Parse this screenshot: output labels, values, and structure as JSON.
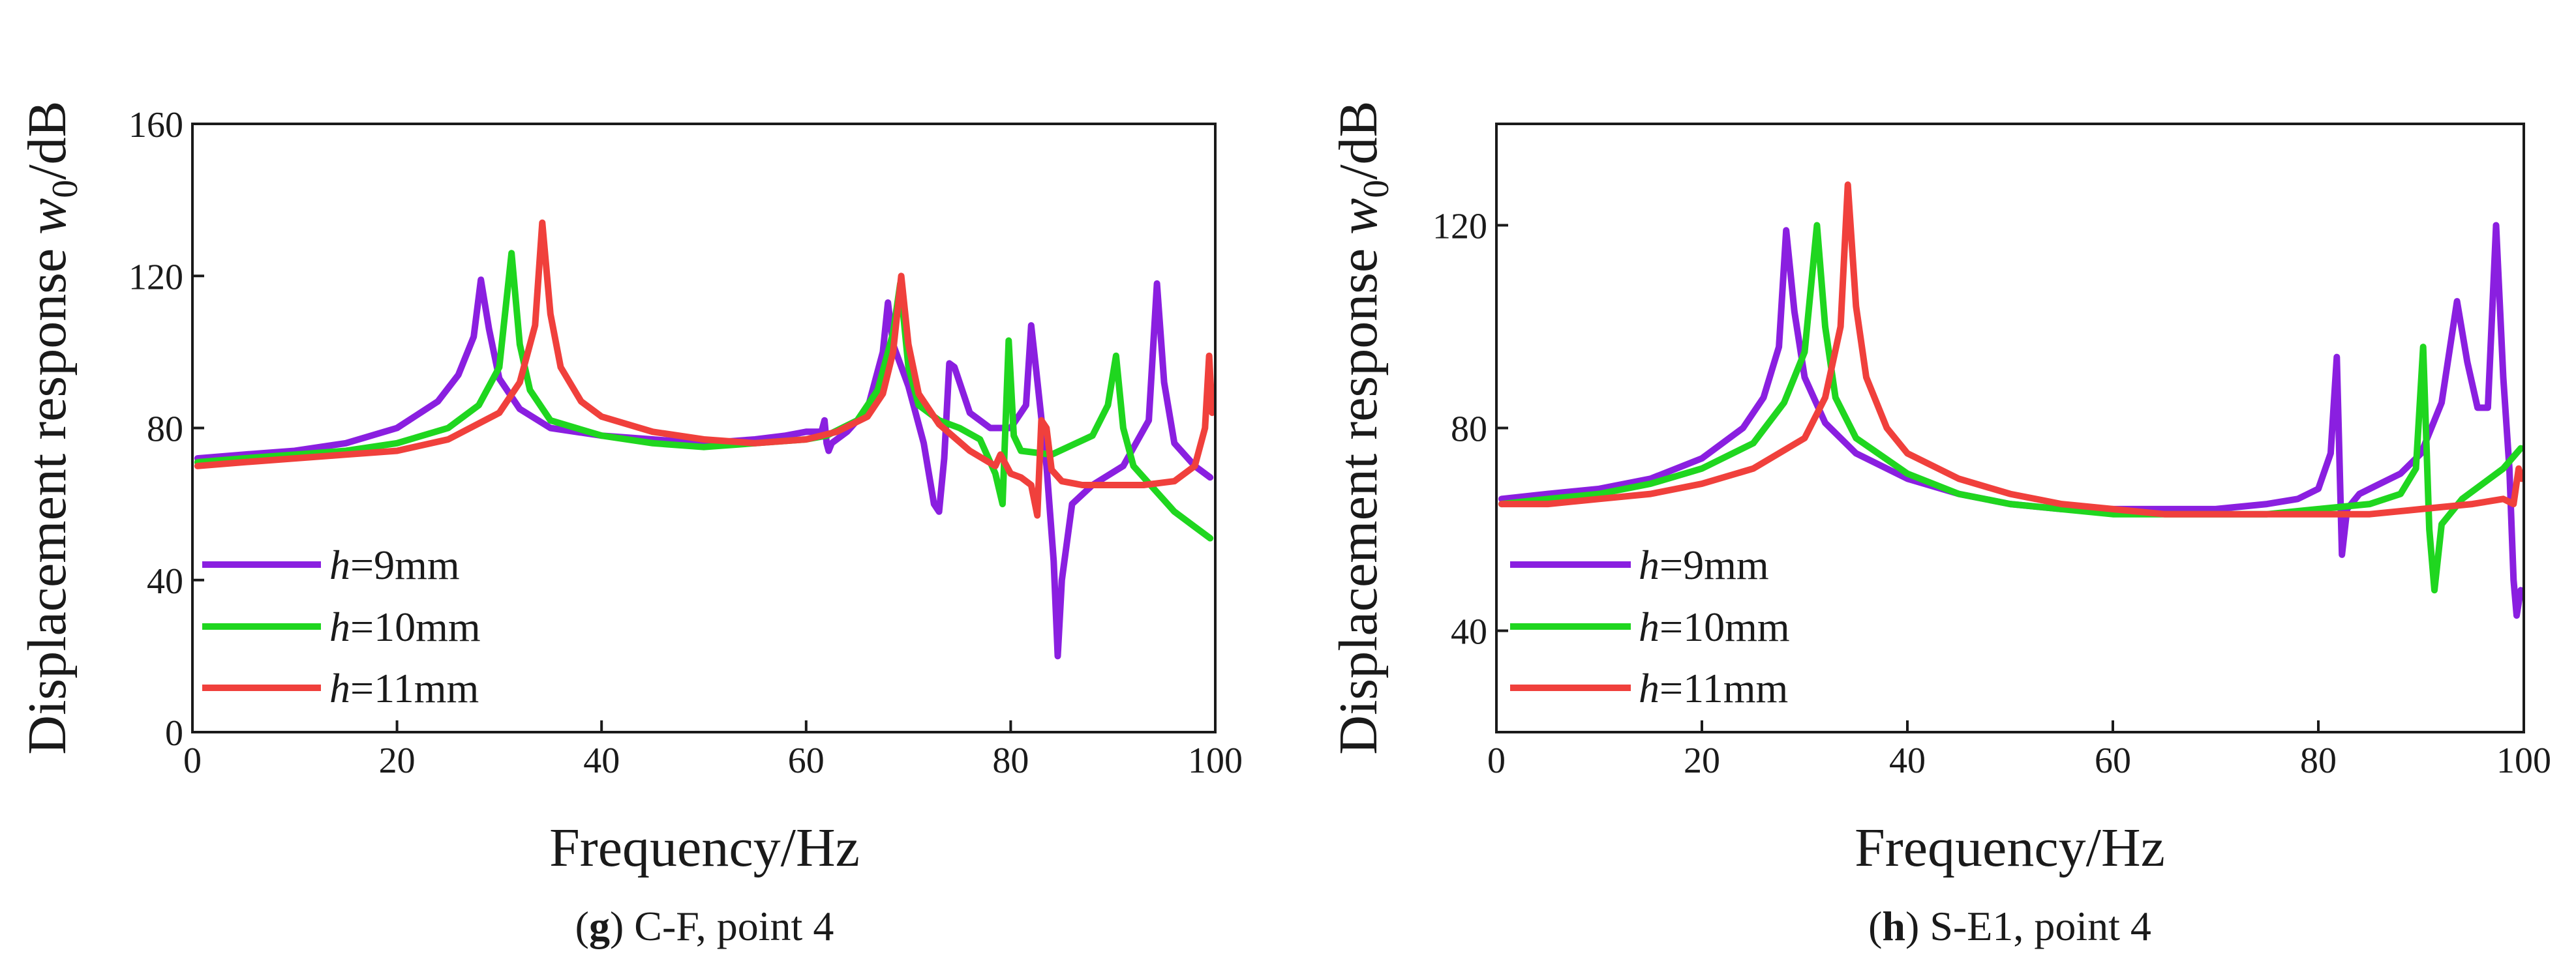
{
  "colors": {
    "h9": "#8a1fe0",
    "h10": "#1fd61f",
    "h11": "#f0403c",
    "axis": "#1a1a1a"
  },
  "chart_data": [
    {
      "type": "line",
      "caption_letter": "g",
      "caption_text": " C-F, point 4",
      "xlabel": "Frequency/Hz",
      "ylabel_prefix": "Displacement response ",
      "ylabel_var": "w",
      "ylabel_sub": "0",
      "ylabel_suffix": "/dB",
      "xlim": [
        0,
        100
      ],
      "ylim": [
        0,
        160
      ],
      "xticks": [
        0,
        20,
        40,
        60,
        80,
        100
      ],
      "yticks": [
        0,
        40,
        80,
        120,
        160
      ],
      "legend_position": "bottom-left",
      "series": [
        {
          "name_var": "h",
          "name_rest": "=9mm",
          "color": "#8a1fe0",
          "x": [
            0.5,
            5,
            10,
            15,
            20,
            24,
            26,
            27.5,
            28.2,
            29,
            30,
            32,
            35,
            40,
            45,
            50,
            55,
            58,
            60,
            61.5,
            61.8,
            62,
            62.2,
            62.5,
            64,
            66,
            67.5,
            68,
            68.5,
            70,
            71.5,
            72.5,
            73,
            73.5,
            74,
            74.5,
            76,
            78,
            80,
            81.5,
            82,
            82.5,
            83.5,
            84.2,
            84.6,
            85,
            86,
            88,
            91,
            93.5,
            94.3,
            95,
            96,
            98,
            99.5
          ],
          "y": [
            72,
            73,
            74,
            76,
            80,
            87,
            94,
            104,
            119,
            106,
            93,
            85,
            80,
            78,
            77,
            76,
            77,
            78,
            79,
            79,
            82,
            76,
            74,
            76,
            79,
            85,
            100,
            113,
            102,
            91,
            76,
            60,
            58,
            72,
            97,
            96,
            84,
            80,
            80,
            86,
            107,
            95,
            70,
            45,
            20,
            40,
            60,
            65,
            70,
            82,
            118,
            92,
            76,
            70,
            67
          ]
        },
        {
          "name_var": "h",
          "name_rest": "=10mm",
          "color": "#1fd61f",
          "x": [
            0.5,
            5,
            10,
            15,
            20,
            25,
            28,
            30,
            31.2,
            32,
            33,
            35,
            40,
            45,
            50,
            55,
            60,
            62,
            65,
            67,
            68.5,
            69.2,
            70,
            71,
            73,
            75,
            77,
            78.5,
            79.2,
            79.8,
            80.3,
            81,
            84,
            88,
            89.5,
            90.3,
            91,
            92,
            94,
            96,
            98,
            99.5
          ],
          "y": [
            71,
            72,
            73,
            74,
            76,
            80,
            86,
            96,
            126,
            102,
            90,
            82,
            78,
            76,
            75,
            76,
            77,
            78,
            82,
            90,
            105,
            118,
            96,
            86,
            82,
            80,
            77,
            68,
            60,
            103,
            78,
            74,
            73,
            78,
            86,
            99,
            80,
            70,
            64,
            58,
            54,
            51
          ]
        },
        {
          "name_var": "h",
          "name_rest": "=11mm",
          "color": "#f0403c",
          "x": [
            0.5,
            5,
            10,
            15,
            20,
            25,
            30,
            32,
            33.5,
            34.2,
            35,
            36,
            38,
            40,
            45,
            50,
            55,
            60,
            63,
            66,
            67.5,
            68.5,
            69.3,
            70,
            71,
            73,
            76,
            78.5,
            79,
            80,
            81,
            82,
            82.6,
            83,
            83.5,
            84,
            85,
            87,
            90,
            93,
            96,
            98,
            99,
            99.4,
            99.7
          ],
          "y": [
            70,
            71,
            72,
            73,
            74,
            77,
            84,
            92,
            107,
            134,
            110,
            96,
            87,
            83,
            79,
            77,
            76,
            77,
            79,
            83,
            89,
            100,
            120,
            102,
            89,
            81,
            74,
            70,
            73,
            68,
            67,
            65,
            57,
            82,
            80,
            69,
            66,
            65,
            65,
            65,
            66,
            70,
            80,
            99,
            84
          ]
        }
      ]
    },
    {
      "type": "line",
      "caption_letter": "h",
      "caption_text": " S-E1, point 4",
      "xlabel": "Frequency/Hz",
      "ylabel_prefix": "Displacement response ",
      "ylabel_var": "w",
      "ylabel_sub": "0",
      "ylabel_suffix": "/dB",
      "xlim": [
        0,
        100
      ],
      "ylim": [
        20,
        140
      ],
      "xticks": [
        0,
        20,
        40,
        60,
        80,
        100
      ],
      "yticks": [
        40,
        80,
        120
      ],
      "legend_position": "bottom-left",
      "series": [
        {
          "name_var": "h",
          "name_rest": "=9mm",
          "color": "#8a1fe0",
          "x": [
            0.5,
            5,
            10,
            15,
            20,
            24,
            26,
            27.5,
            28.2,
            29,
            30,
            32,
            35,
            40,
            45,
            50,
            55,
            60,
            65,
            70,
            75,
            78,
            80,
            81.2,
            81.8,
            82.3,
            82.8,
            84,
            86,
            88,
            90,
            92,
            93.5,
            94.5,
            95.5,
            96.5,
            97.3,
            98,
            98.6,
            99,
            99.3,
            99.7
          ],
          "y": [
            66,
            67,
            68,
            70,
            74,
            80,
            86,
            96,
            119,
            103,
            90,
            81,
            75,
            70,
            67,
            65,
            64,
            64,
            64,
            64,
            65,
            66,
            68,
            75,
            94,
            55,
            64,
            67,
            69,
            71,
            75,
            85,
            105,
            93,
            84,
            84,
            120,
            90,
            72,
            50,
            43,
            48
          ]
        },
        {
          "name_var": "h",
          "name_rest": "=10mm",
          "color": "#1fd61f",
          "x": [
            0.5,
            5,
            10,
            15,
            20,
            25,
            28,
            30,
            31.2,
            32,
            33,
            35,
            40,
            45,
            50,
            55,
            60,
            65,
            70,
            75,
            80,
            85,
            88,
            89.5,
            90.2,
            90.8,
            91.3,
            92,
            94,
            96,
            98,
            99.7
          ],
          "y": [
            65,
            66,
            67,
            69,
            72,
            77,
            85,
            95,
            120,
            100,
            86,
            78,
            71,
            67,
            65,
            64,
            63,
            63,
            63,
            63,
            64,
            65,
            67,
            72,
            96,
            60,
            48,
            61,
            66,
            69,
            72,
            76
          ]
        },
        {
          "name_var": "h",
          "name_rest": "=11mm",
          "color": "#f0403c",
          "x": [
            0.5,
            5,
            10,
            15,
            20,
            25,
            30,
            32,
            33.5,
            34.2,
            35,
            36,
            38,
            40,
            45,
            50,
            55,
            60,
            65,
            70,
            75,
            80,
            85,
            90,
            95,
            98,
            99,
            99.5,
            99.8
          ],
          "y": [
            65,
            65,
            66,
            67,
            69,
            72,
            78,
            86,
            100,
            128,
            104,
            90,
            80,
            75,
            70,
            67,
            65,
            64,
            63,
            63,
            63,
            63,
            63,
            64,
            65,
            66,
            65,
            72,
            70
          ]
        }
      ]
    }
  ]
}
